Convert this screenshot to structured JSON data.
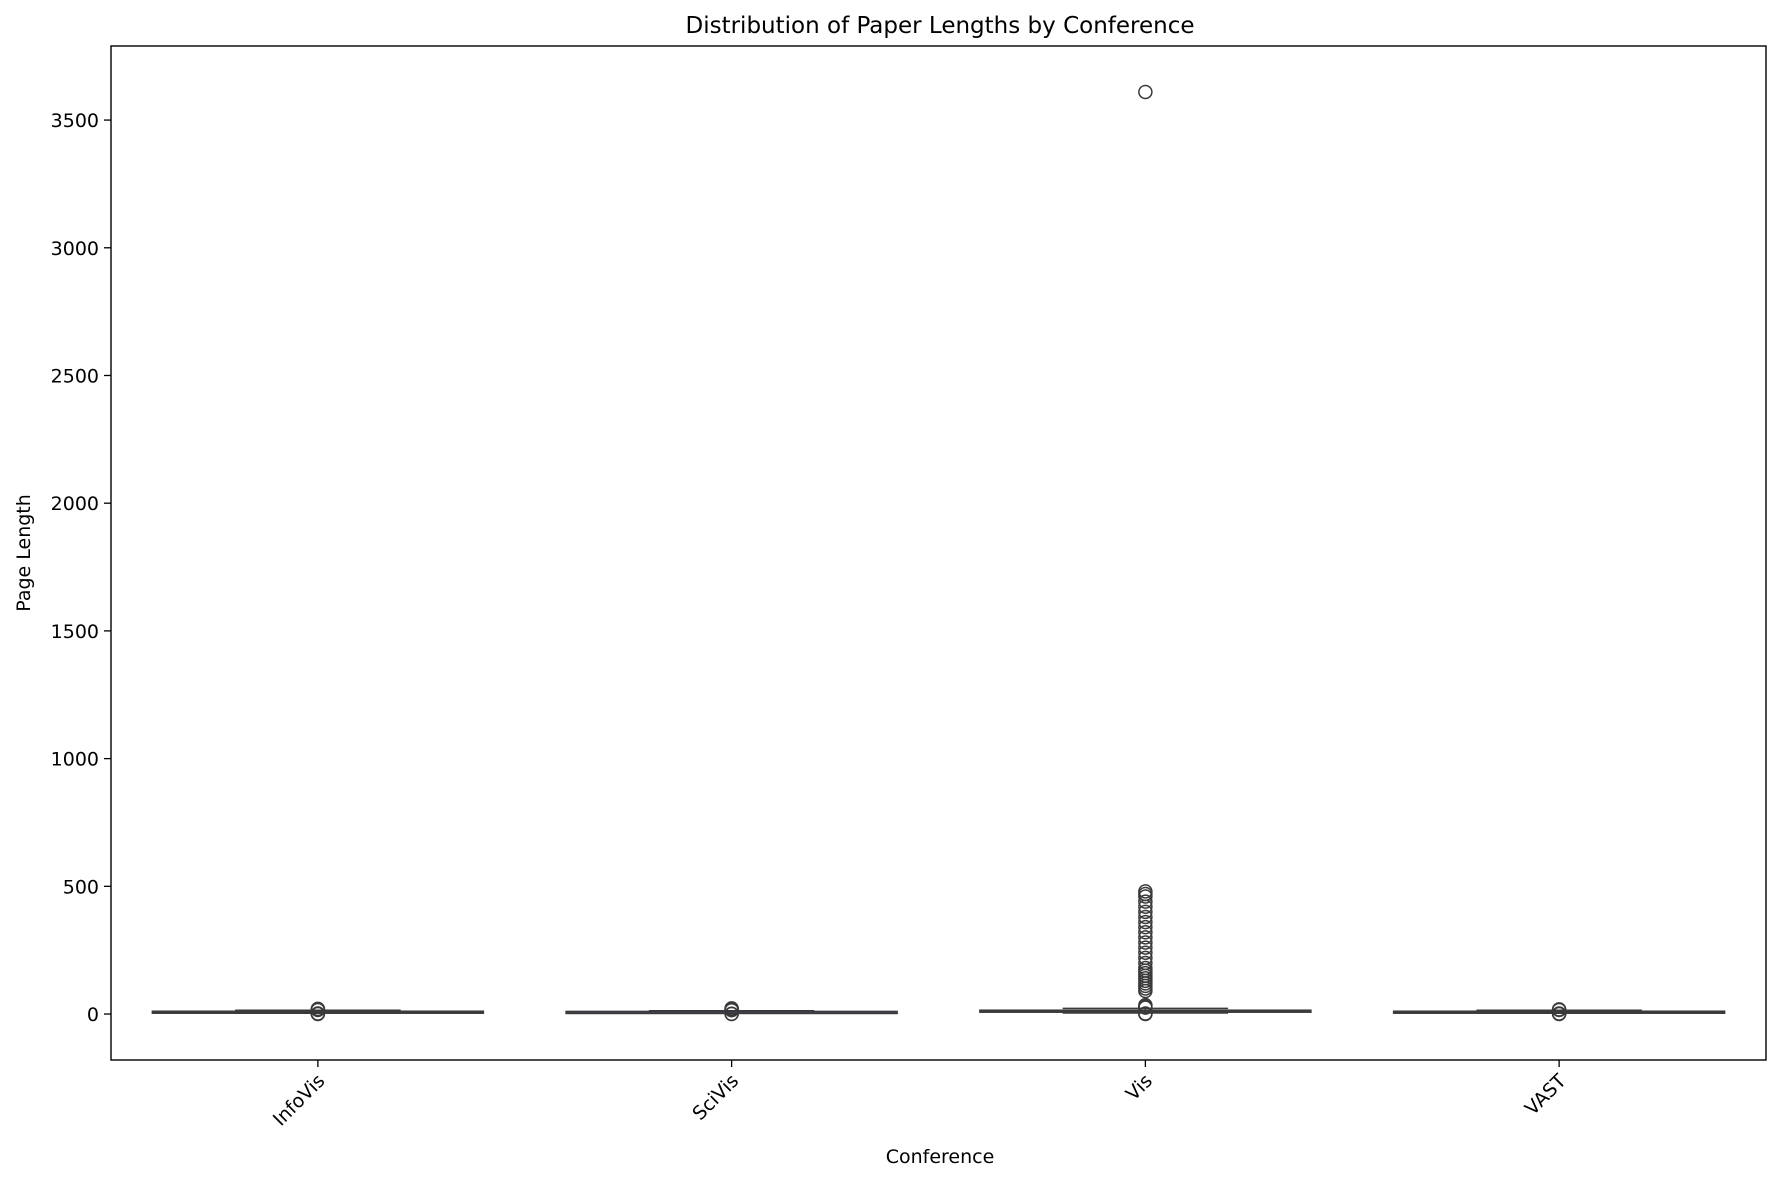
{
  "chart_data": {
    "type": "box",
    "title": "Distribution of Paper Lengths by Conference",
    "xlabel": "Conference",
    "ylabel": "Page Length",
    "categories": [
      "InfoVis",
      "SciVis",
      "Vis",
      "VAST"
    ],
    "ylim": [
      -180,
      3790
    ],
    "yticks": [
      0,
      500,
      1000,
      1500,
      2000,
      2500,
      3000,
      3500
    ],
    "ytick_labels": [
      "0",
      "500",
      "1000",
      "1500",
      "2000",
      "2500",
      "3000",
      "3500"
    ],
    "grid": false,
    "legend": "none",
    "box_color": "#3a3a3a",
    "series": [
      {
        "category": "InfoVis",
        "whisker_low": 3,
        "q1": 8,
        "median": 9,
        "q3": 11,
        "whisker_high": 15,
        "outliers": [
          0,
          1,
          2,
          16,
          18,
          20
        ]
      },
      {
        "category": "SciVis",
        "whisker_low": 3,
        "q1": 8,
        "median": 9,
        "q3": 10,
        "whisker_high": 13,
        "outliers": [
          0,
          1,
          15,
          18,
          20,
          22
        ]
      },
      {
        "category": "Vis",
        "whisker_low": 4,
        "q1": 10,
        "median": 12,
        "q3": 15,
        "whisker_high": 22,
        "outliers": [
          0,
          1,
          2,
          25,
          30,
          35,
          90,
          100,
          110,
          120,
          130,
          140,
          150,
          160,
          170,
          180,
          200,
          220,
          240,
          260,
          280,
          300,
          320,
          340,
          360,
          380,
          400,
          420,
          440,
          460,
          470,
          480,
          3610
        ]
      },
      {
        "category": "VAST",
        "whisker_low": 3,
        "q1": 8,
        "median": 9,
        "q3": 11,
        "whisker_high": 15,
        "outliers": [
          0,
          1,
          2,
          16,
          18
        ]
      }
    ]
  }
}
